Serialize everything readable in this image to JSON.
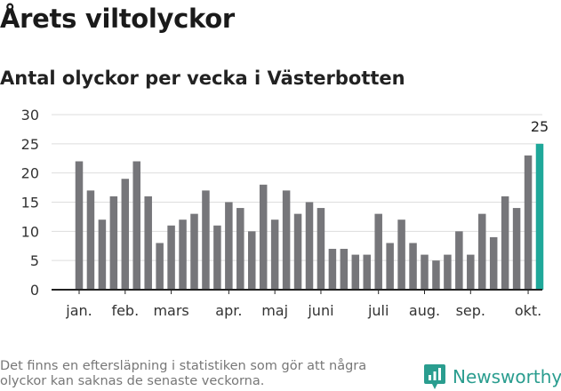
{
  "header": {
    "title": "Årets viltolyckor",
    "subtitle": "Antal olyckor per vecka i Västerbotten"
  },
  "footer": {
    "note": "Det finns en eftersläpning i statistiken som gör att några olyckor kan saknas de senaste veckorna.",
    "brand": "Newsworthy"
  },
  "colors": {
    "bar": "#76767a",
    "highlight": "#1fa89a",
    "brand": "#2a9d8f",
    "grid": "#dddddd",
    "axis": "#222222"
  },
  "chart_data": {
    "type": "bar",
    "title": "Antal olyckor per vecka i Västerbotten",
    "xlabel": "",
    "ylabel": "",
    "ylim": [
      0,
      30
    ],
    "yticks": [
      0,
      5,
      10,
      15,
      20,
      25,
      30
    ],
    "grid": true,
    "values": [
      22,
      17,
      12,
      16,
      19,
      22,
      16,
      8,
      11,
      12,
      13,
      17,
      11,
      15,
      14,
      10,
      18,
      12,
      17,
      13,
      15,
      14,
      7,
      7,
      6,
      6,
      13,
      8,
      12,
      8,
      6,
      5,
      6,
      10,
      6,
      13,
      9,
      16,
      14,
      23,
      25
    ],
    "highlight_index": 40,
    "highlight_label": "25",
    "month_labels": [
      {
        "label": "jan.",
        "bar": 0
      },
      {
        "label": "feb.",
        "bar": 4
      },
      {
        "label": "mars",
        "bar": 8
      },
      {
        "label": "apr.",
        "bar": 13
      },
      {
        "label": "maj",
        "bar": 17
      },
      {
        "label": "juni",
        "bar": 21
      },
      {
        "label": "juli",
        "bar": 26
      },
      {
        "label": "aug.",
        "bar": 30
      },
      {
        "label": "sep.",
        "bar": 34
      },
      {
        "label": "okt.",
        "bar": 39
      }
    ]
  }
}
